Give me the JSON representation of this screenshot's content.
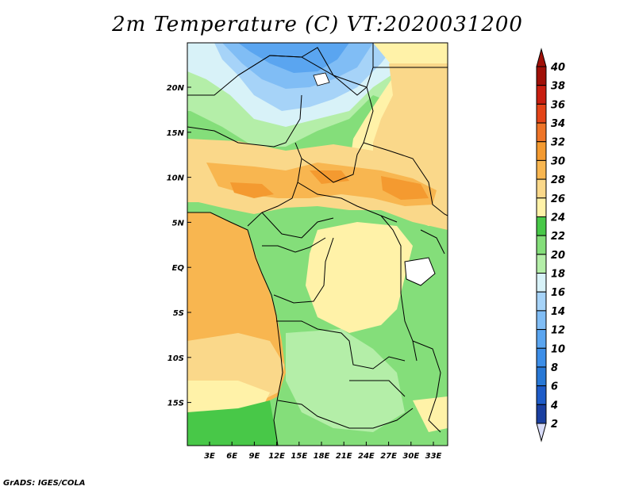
{
  "title": "2m Temperature (C) VT:2020031200",
  "footer": "GrADS: IGES/COLA",
  "map": {
    "lon_labels": [
      "3E",
      "6E",
      "9E",
      "12E",
      "15E",
      "18E",
      "21E",
      "24E",
      "27E",
      "30E",
      "33E"
    ],
    "lat_labels": [
      "20N",
      "15N",
      "10N",
      "5N",
      "EQ",
      "5S",
      "10S",
      "15S"
    ]
  },
  "colorbar": {
    "levels": [
      "2",
      "4",
      "6",
      "8",
      "10",
      "12",
      "14",
      "16",
      "18",
      "20",
      "22",
      "24",
      "26",
      "28",
      "30",
      "32",
      "34",
      "36",
      "38",
      "40"
    ],
    "colors": [
      "#0a1e6e",
      "#1a3fa0",
      "#1e5cc8",
      "#2878d6",
      "#3c8ee8",
      "#5aa5f0",
      "#80bdf5",
      "#a6d3f8",
      "#d8f2f8",
      "#b4eea8",
      "#84de7a",
      "#48c848",
      "#fff2a8",
      "#fad88a",
      "#f8b650",
      "#f49a30",
      "#ee7428",
      "#e44418",
      "#c81e10",
      "#a01008"
    ],
    "top_color": "#a01008",
    "bottom_color": "#d8dcf8"
  },
  "palette": {
    "land_green": "#84de7a",
    "ocean_orange": "#f8b650",
    "desert_blue": "#80bdf5"
  }
}
